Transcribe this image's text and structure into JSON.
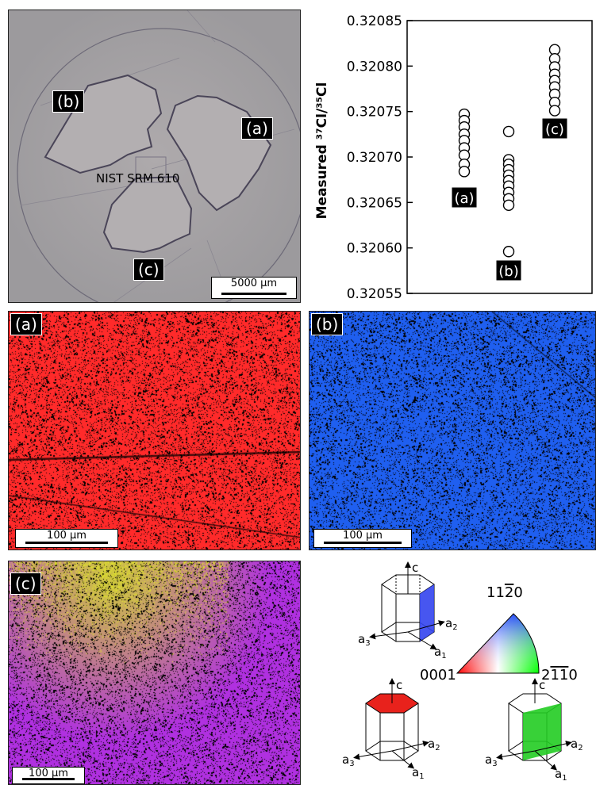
{
  "micrograph": {
    "tag_a": "(a)",
    "tag_b": "(b)",
    "tag_c": "(c)",
    "sample_label": "NIST SRM 610",
    "scalebar": "5000 μm"
  },
  "maps": {
    "a": {
      "tag": "(a)",
      "scalebar": "100 μm",
      "color": "#ff2a2a"
    },
    "b": {
      "tag": "(b)",
      "scalebar": "100 μm",
      "color": "#1f5ff0"
    },
    "c": {
      "tag": "(c)",
      "scalebar": "100 μm",
      "color": "#b030e0"
    }
  },
  "chart_data": {
    "type": "scatter",
    "ylabel": "Measured ³⁷Cl/³⁵Cl",
    "ylim": [
      0.32055,
      0.32085
    ],
    "yticks": [
      "0.32055",
      "0.32060",
      "0.32065",
      "0.32070",
      "0.32075",
      "0.32080",
      "0.32085"
    ],
    "series": [
      {
        "tag": "(a)",
        "values": [
          0.320747,
          0.32074,
          0.320733,
          0.320725,
          0.320718,
          0.32071,
          0.320702,
          0.320692,
          0.320684
        ]
      },
      {
        "tag": "(b)",
        "values": [
          0.320728,
          0.320697,
          0.320692,
          0.320686,
          0.32068,
          0.320674,
          0.320668,
          0.320661,
          0.320654,
          0.320647,
          0.320596
        ]
      },
      {
        "tag": "(c)",
        "values": [
          0.320818,
          0.320808,
          0.320799,
          0.320791,
          0.320784,
          0.320777,
          0.320769,
          0.32076,
          0.320751
        ]
      }
    ]
  },
  "orientation_key": {
    "axis_c": "c",
    "axis_a1": "a",
    "axis_a2": "a",
    "axis_a3": "a",
    "sub1": "1",
    "sub2": "2",
    "sub3": "3",
    "corner_top": "11",
    "corner_top_bar": "2",
    "corner_top_end": "0",
    "corner_left": "0001",
    "corner_right_a": "2",
    "corner_right_b": "1",
    "corner_right_c": "1",
    "corner_right_d": "0",
    "color_top_face": "#e8221c",
    "color_prism_face": "#3344ee",
    "color_prism_face_alt": "#22cc22"
  }
}
